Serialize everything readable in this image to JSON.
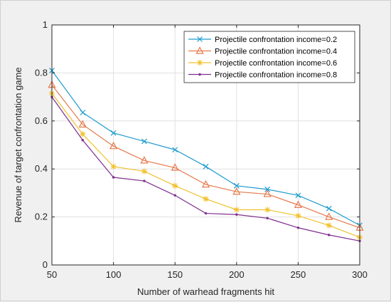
{
  "chart_data": {
    "type": "line",
    "xlabel": "Number of warhead fragments hit",
    "ylabel": "Revenue of target confrontation game",
    "xlim": [
      50,
      300
    ],
    "ylim": [
      0,
      1
    ],
    "xticks": [
      50,
      100,
      150,
      200,
      250,
      300
    ],
    "yticks": [
      0,
      0.2,
      0.4,
      0.6,
      0.8,
      1
    ],
    "ytick_labels": [
      "0",
      "0.2",
      "0.4",
      "0.6",
      "0.8",
      "1"
    ],
    "grid": true,
    "legend_position": "top-right",
    "x": [
      50,
      75,
      100,
      125,
      150,
      175,
      200,
      225,
      250,
      275,
      300
    ],
    "series": [
      {
        "name": "Projectile confrontation income=0.2",
        "color": "#1f9bcf",
        "marker": "x",
        "values": [
          0.81,
          0.635,
          0.55,
          0.515,
          0.48,
          0.41,
          0.33,
          0.315,
          0.29,
          0.235,
          0.165
        ]
      },
      {
        "name": "Projectile confrontation income=0.4",
        "color": "#e57a4b",
        "marker": "triangle",
        "values": [
          0.75,
          0.585,
          0.495,
          0.435,
          0.405,
          0.335,
          0.305,
          0.295,
          0.25,
          0.2,
          0.155
        ]
      },
      {
        "name": "Projectile confrontation income=0.6",
        "color": "#f2c12e",
        "marker": "star",
        "values": [
          0.715,
          0.545,
          0.41,
          0.39,
          0.33,
          0.275,
          0.23,
          0.23,
          0.205,
          0.165,
          0.115
        ]
      },
      {
        "name": "Projectile confrontation income=0.8",
        "color": "#7e2f8e",
        "marker": "dot",
        "values": [
          0.7,
          0.52,
          0.365,
          0.35,
          0.29,
          0.215,
          0.21,
          0.195,
          0.155,
          0.125,
          0.1
        ]
      }
    ]
  }
}
